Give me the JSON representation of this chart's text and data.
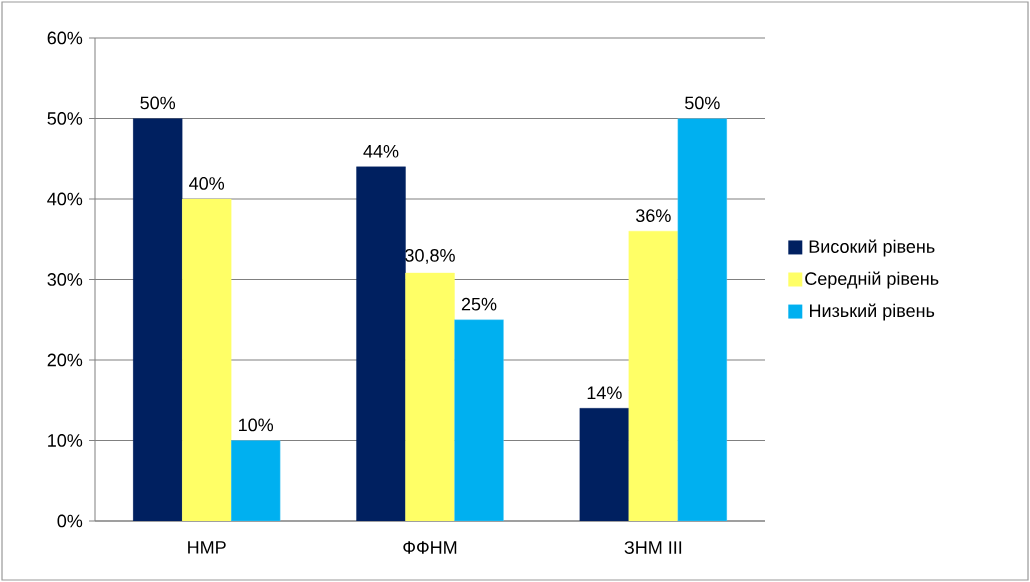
{
  "chart_data": {
    "type": "bar",
    "categories": [
      "НМР",
      "ФФНМ",
      "ЗНМ ІІІ"
    ],
    "series": [
      {
        "name": "Високий рівень",
        "color": "#002060",
        "values": [
          50,
          44,
          14
        ],
        "value_labels": [
          "50%",
          "44%",
          "14%"
        ]
      },
      {
        "name": "Середній рівень",
        "color": "#ffff66",
        "values": [
          40,
          30.8,
          36
        ],
        "value_labels": [
          "40%",
          "30,8%",
          "36%"
        ]
      },
      {
        "name": "Низький рівень",
        "color": "#00b0f0",
        "values": [
          10,
          25,
          50
        ],
        "value_labels": [
          "10%",
          "25%",
          "50%"
        ]
      }
    ],
    "ylim": [
      0,
      60
    ],
    "yticks": [
      {
        "value": 0,
        "label": "0%"
      },
      {
        "value": 10,
        "label": "10%"
      },
      {
        "value": 20,
        "label": "20%"
      },
      {
        "value": 30,
        "label": "30%"
      },
      {
        "value": 40,
        "label": "40%"
      },
      {
        "value": 50,
        "label": "50%"
      },
      {
        "value": 60,
        "label": "60%"
      }
    ],
    "grid": "y",
    "legend": "right"
  }
}
